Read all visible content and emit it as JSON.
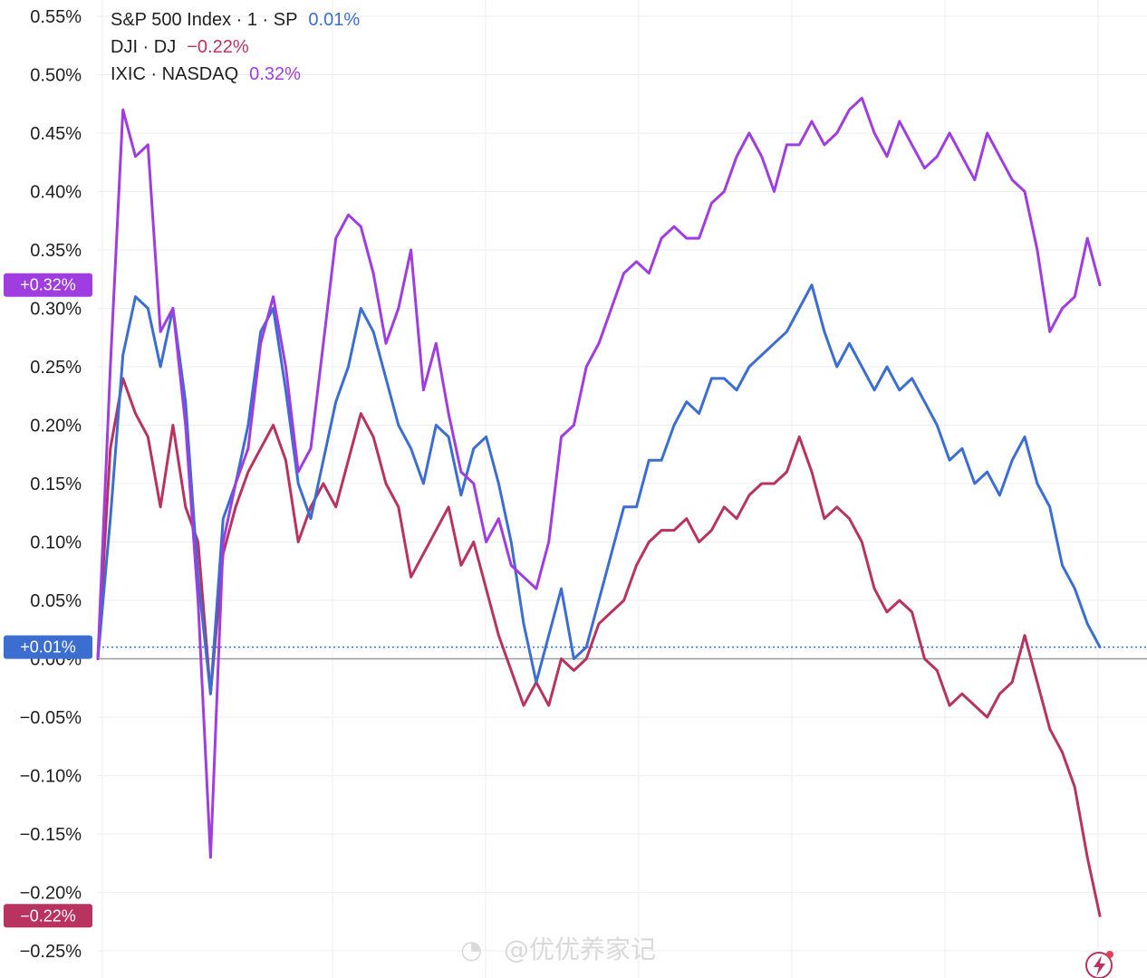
{
  "chart_data": {
    "type": "line",
    "title": "",
    "xlabel": "",
    "ylabel": "",
    "y_unit": "%",
    "ylim": [
      -0.27,
      0.56
    ],
    "y_ticks": [
      0.55,
      0.5,
      0.45,
      0.4,
      0.35,
      0.3,
      0.25,
      0.2,
      0.15,
      0.1,
      0.05,
      0.0,
      -0.05,
      -0.1,
      -0.15,
      -0.2,
      -0.25
    ],
    "y_tick_labels": [
      "0.55%",
      "0.50%",
      "0.45%",
      "0.40%",
      "0.35%",
      "0.30%",
      "0.25%",
      "0.20%",
      "0.15%",
      "0.10%",
      "0.05%",
      "0.00%",
      "−0.05%",
      "−0.10%",
      "−0.15%",
      "−0.20%",
      "−0.25%"
    ],
    "grid": true,
    "legend_position": "top-left",
    "x": [
      0,
      1,
      2,
      3,
      4,
      5,
      6,
      7,
      8,
      9,
      10,
      11,
      12,
      13,
      14,
      15,
      16,
      17,
      18,
      19,
      20,
      21,
      22,
      23,
      24,
      25,
      26,
      27,
      28,
      29,
      30,
      31,
      32,
      33,
      34,
      35,
      36,
      37,
      38,
      39,
      40,
      41,
      42,
      43,
      44,
      45,
      46,
      47,
      48,
      49,
      50,
      51,
      52,
      53,
      54,
      55,
      56,
      57,
      58,
      59,
      60,
      61,
      62,
      63,
      64,
      65,
      66,
      67,
      68,
      69,
      70,
      71,
      72,
      73,
      74,
      75,
      76,
      77,
      78,
      79,
      80
    ],
    "series": [
      {
        "name": "S&P 500 Index · 1 · SP",
        "last_value_label": "0.01%",
        "badge_label": "+0.01%",
        "color": "#3b6ed0",
        "values": [
          0.0,
          0.12,
          0.26,
          0.31,
          0.3,
          0.25,
          0.3,
          0.22,
          0.07,
          -0.03,
          0.12,
          0.15,
          0.2,
          0.28,
          0.3,
          0.23,
          0.15,
          0.12,
          0.17,
          0.22,
          0.25,
          0.3,
          0.28,
          0.24,
          0.2,
          0.18,
          0.15,
          0.2,
          0.19,
          0.14,
          0.18,
          0.19,
          0.15,
          0.1,
          0.03,
          -0.02,
          0.02,
          0.06,
          0.0,
          0.01,
          0.05,
          0.09,
          0.13,
          0.13,
          0.17,
          0.17,
          0.2,
          0.22,
          0.21,
          0.24,
          0.24,
          0.23,
          0.25,
          0.26,
          0.27,
          0.28,
          0.3,
          0.32,
          0.28,
          0.25,
          0.27,
          0.25,
          0.23,
          0.25,
          0.23,
          0.24,
          0.22,
          0.2,
          0.17,
          0.18,
          0.15,
          0.16,
          0.14,
          0.17,
          0.19,
          0.15,
          0.13,
          0.08,
          0.06,
          0.03,
          0.01
        ]
      },
      {
        "name": "DJI · DJ",
        "last_value_label": "−0.22%",
        "badge_label": "−0.22%",
        "color": "#b8335f",
        "values": [
          0.0,
          0.18,
          0.24,
          0.21,
          0.19,
          0.13,
          0.2,
          0.13,
          0.1,
          -0.03,
          0.09,
          0.13,
          0.16,
          0.18,
          0.2,
          0.17,
          0.1,
          0.13,
          0.15,
          0.13,
          0.17,
          0.21,
          0.19,
          0.15,
          0.13,
          0.07,
          0.09,
          0.11,
          0.13,
          0.08,
          0.1,
          0.06,
          0.02,
          -0.01,
          -0.04,
          -0.02,
          -0.04,
          0.0,
          -0.01,
          0.0,
          0.03,
          0.04,
          0.05,
          0.08,
          0.1,
          0.11,
          0.11,
          0.12,
          0.1,
          0.11,
          0.13,
          0.12,
          0.14,
          0.15,
          0.15,
          0.16,
          0.19,
          0.16,
          0.12,
          0.13,
          0.12,
          0.1,
          0.06,
          0.04,
          0.05,
          0.04,
          0.0,
          -0.01,
          -0.04,
          -0.03,
          -0.04,
          -0.05,
          -0.03,
          -0.02,
          0.02,
          -0.02,
          -0.06,
          -0.08,
          -0.11,
          -0.17,
          -0.22
        ]
      },
      {
        "name": "IXIC · NASDAQ",
        "last_value_label": "0.32%",
        "badge_label": "+0.32%",
        "color": "#a03de0",
        "values": [
          0.0,
          0.25,
          0.47,
          0.43,
          0.44,
          0.28,
          0.3,
          0.2,
          0.05,
          -0.17,
          0.1,
          0.15,
          0.18,
          0.27,
          0.31,
          0.25,
          0.16,
          0.18,
          0.27,
          0.36,
          0.38,
          0.37,
          0.33,
          0.27,
          0.3,
          0.35,
          0.23,
          0.27,
          0.21,
          0.16,
          0.15,
          0.1,
          0.12,
          0.08,
          0.07,
          0.06,
          0.1,
          0.19,
          0.2,
          0.25,
          0.27,
          0.3,
          0.33,
          0.34,
          0.33,
          0.36,
          0.37,
          0.36,
          0.36,
          0.39,
          0.4,
          0.43,
          0.45,
          0.43,
          0.4,
          0.44,
          0.44,
          0.46,
          0.44,
          0.45,
          0.47,
          0.48,
          0.45,
          0.43,
          0.46,
          0.44,
          0.42,
          0.43,
          0.45,
          0.43,
          0.41,
          0.45,
          0.43,
          0.41,
          0.4,
          0.35,
          0.28,
          0.3,
          0.31,
          0.36,
          0.32
        ]
      }
    ]
  },
  "watermark": "微博 @优优养家记",
  "watermark_handle": "@优优养家记",
  "logo_icon": "lightning-logo-icon"
}
